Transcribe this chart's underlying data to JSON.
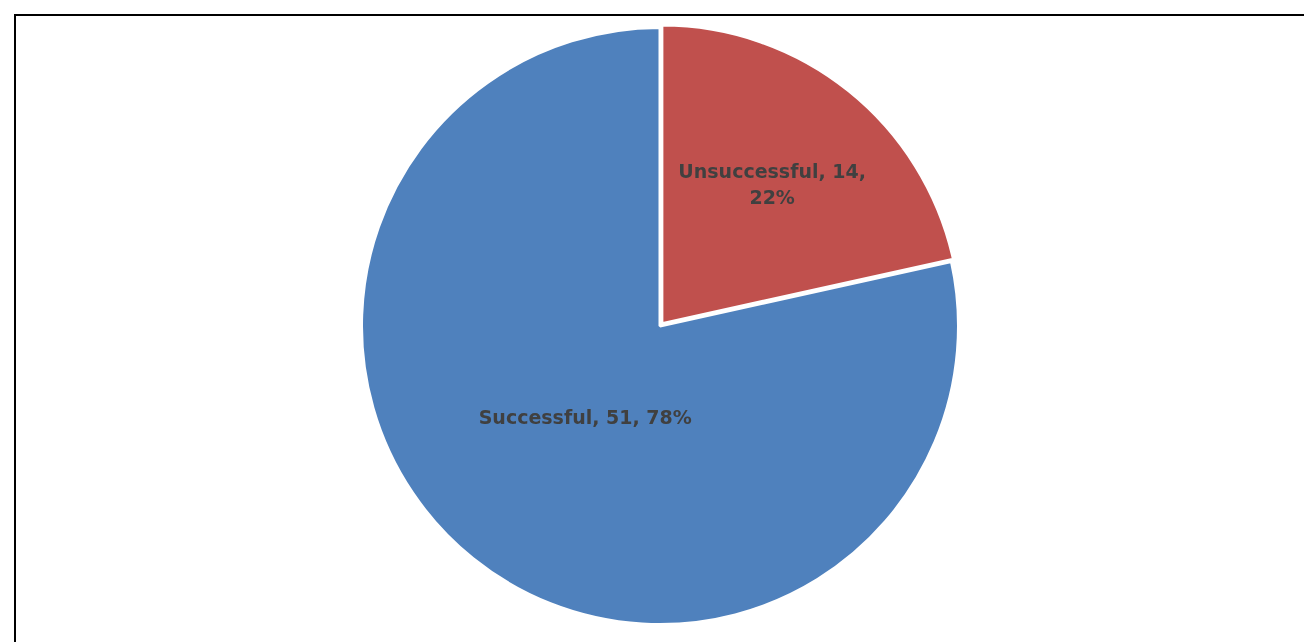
{
  "chart_data": {
    "type": "pie",
    "categories": [
      "Unsuccessful",
      "Successful"
    ],
    "values": [
      14,
      51
    ],
    "colors": [
      "#c0504d",
      "#4f81bd"
    ],
    "value_labels": [
      "14, 22%",
      "51, 78%"
    ],
    "legend": false
  }
}
